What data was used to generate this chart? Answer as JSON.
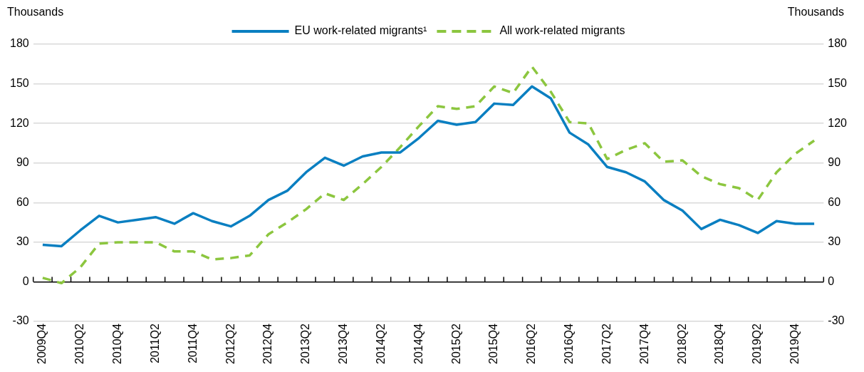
{
  "chart_data": {
    "type": "line",
    "ylabel": "Thousands",
    "y2label": "Thousands",
    "categories": [
      "2009Q4",
      null,
      "2010Q2",
      null,
      "2010Q4",
      null,
      "2011Q2",
      null,
      "2011Q4",
      null,
      "2012Q2",
      null,
      "2012Q4",
      null,
      "2013Q2",
      null,
      "2013Q4",
      null,
      "2014Q2",
      null,
      "2014Q4",
      null,
      "2015Q2",
      null,
      "2015Q4",
      null,
      "2016Q2",
      null,
      "2016Q4",
      null,
      "2017Q2",
      null,
      "2017Q4",
      null,
      "2018Q2",
      null,
      "2018Q4",
      null,
      "2019Q2",
      null,
      "2019Q4",
      null
    ],
    "series": [
      {
        "name": "EU work-related migrants¹",
        "color": "#0a7fc1",
        "line_style": "solid",
        "values": [
          28,
          27,
          39,
          50,
          45,
          47,
          49,
          44,
          52,
          46,
          42,
          50,
          62,
          69,
          83,
          94,
          88,
          95,
          98,
          98,
          109,
          122,
          119,
          121,
          135,
          134,
          148,
          139,
          113,
          104,
          87,
          83,
          76,
          62,
          54,
          40,
          47,
          43,
          37,
          46,
          44,
          44
        ]
      },
      {
        "name": "All work-related migrants",
        "color": "#8cc63f",
        "line_style": "dashed",
        "values": [
          3,
          -1,
          11,
          29,
          30,
          30,
          30,
          23,
          23,
          17,
          18,
          20,
          36,
          45,
          55,
          67,
          62,
          74,
          87,
          102,
          118,
          133,
          131,
          133,
          148,
          143,
          163,
          144,
          121,
          120,
          93,
          100,
          105,
          91,
          92,
          80,
          74,
          71,
          62,
          83,
          97,
          107
        ]
      }
    ],
    "ylim": [
      -30,
      180
    ],
    "yticks": [
      -30,
      0,
      30,
      60,
      90,
      120,
      150,
      180
    ],
    "y2lim": [
      -30,
      180
    ],
    "y2ticks": [
      -30,
      0,
      30,
      60,
      90,
      120,
      150,
      180
    ],
    "grid": "y",
    "legend": "top",
    "marker": "none"
  }
}
